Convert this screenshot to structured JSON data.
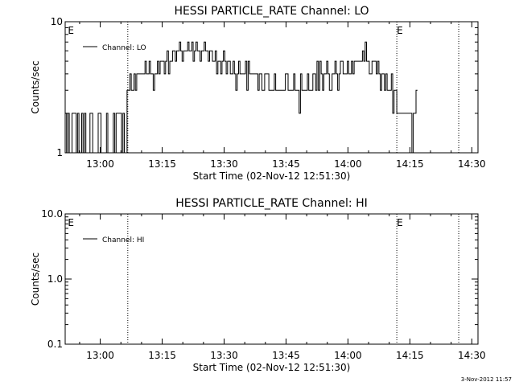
{
  "chart_data": [
    {
      "type": "line",
      "title": "HESSI PARTICLE_RATE Channel: LO",
      "xlabel": "Start Time (02-Nov-12 12:51:30)",
      "ylabel": "Counts/sec",
      "yscale": "log",
      "ylim": [
        1,
        10
      ],
      "xlim": [
        "12:51:30",
        "14:31:30"
      ],
      "xticks": [
        "13:00",
        "13:15",
        "13:30",
        "13:45",
        "14:00",
        "14:15",
        "14:30"
      ],
      "yticks": [
        "1",
        "10"
      ],
      "legend": "top-left",
      "markers": [
        {
          "time": "12:52:10",
          "label": "E"
        },
        {
          "time": "14:11:50",
          "label": "E"
        }
      ],
      "vlines": [
        "13:06:40",
        "14:11:50",
        "14:26:50"
      ],
      "series": [
        {
          "name": "Channel: LO",
          "x_start": "12:51:30",
          "x_step_seconds": 20,
          "values": [
            2,
            1,
            2,
            1,
            1,
            2,
            2,
            2,
            1,
            2,
            1,
            1,
            2,
            1,
            2,
            1,
            1,
            1,
            2,
            2,
            1,
            1,
            1,
            1,
            2,
            2,
            1,
            1,
            1,
            1,
            2,
            1,
            1,
            1,
            1,
            2,
            1,
            2,
            2,
            2,
            2,
            1,
            2,
            1,
            1,
            3,
            3,
            4,
            3,
            3,
            4,
            3,
            4,
            4,
            4,
            4,
            4,
            4,
            5,
            4,
            4,
            5,
            4,
            4,
            3,
            4,
            4,
            5,
            4,
            5,
            5,
            5,
            4,
            5,
            6,
            4,
            5,
            5,
            6,
            6,
            5,
            6,
            6,
            7,
            6,
            5,
            6,
            6,
            6,
            7,
            6,
            6,
            7,
            5,
            6,
            7,
            6,
            6,
            5,
            6,
            6,
            7,
            6,
            6,
            5,
            6,
            6,
            5,
            5,
            6,
            4,
            5,
            5,
            4,
            5,
            6,
            5,
            4,
            5,
            5,
            4,
            4,
            5,
            4,
            3,
            4,
            5,
            4,
            4,
            4,
            4,
            5,
            3,
            5,
            4,
            4,
            4,
            4,
            4,
            4,
            3,
            4,
            4,
            3,
            3,
            4,
            4,
            4,
            3,
            3,
            3,
            3,
            4,
            3,
            3,
            3,
            3,
            3,
            3,
            3,
            4,
            4,
            3,
            3,
            3,
            3,
            4,
            3,
            3,
            3,
            2,
            4,
            3,
            3,
            3,
            3,
            4,
            3,
            3,
            3,
            4,
            4,
            3,
            5,
            3,
            5,
            4,
            3,
            4,
            4,
            5,
            4,
            3,
            3,
            4,
            4,
            5,
            4,
            3,
            4,
            5,
            5,
            4,
            4,
            4,
            5,
            4,
            4,
            5,
            4,
            5,
            5,
            5,
            5,
            5,
            5,
            6,
            5,
            7,
            5,
            5,
            4,
            4,
            5,
            5,
            5,
            4,
            5,
            4,
            3,
            4,
            4,
            3,
            4,
            3,
            3,
            3,
            4,
            2,
            3,
            3,
            2,
            2,
            2,
            2,
            2,
            2,
            2,
            2,
            2,
            2,
            2,
            1,
            2,
            2,
            3
          ]
        }
      ]
    },
    {
      "type": "line",
      "title": "HESSI PARTICLE_RATE Channel: HI",
      "xlabel": "Start Time (02-Nov-12 12:51:30)",
      "ylabel": "Counts/sec",
      "yscale": "log",
      "ylim": [
        0.1,
        10
      ],
      "xlim": [
        "12:51:30",
        "14:31:30"
      ],
      "xticks": [
        "13:00",
        "13:15",
        "13:30",
        "13:45",
        "14:00",
        "14:15",
        "14:30"
      ],
      "yticks": [
        "0.1",
        "1.0",
        "10.0"
      ],
      "legend": "top-left",
      "markers": [
        {
          "time": "12:52:10",
          "label": "E"
        },
        {
          "time": "14:11:50",
          "label": "E"
        }
      ],
      "vlines": [
        "13:06:40",
        "14:11:50",
        "14:26:50"
      ],
      "series": [
        {
          "name": "Channel: HI",
          "values": []
        }
      ]
    }
  ],
  "footer": {
    "timestamp": "3-Nov-2012 11:57"
  }
}
